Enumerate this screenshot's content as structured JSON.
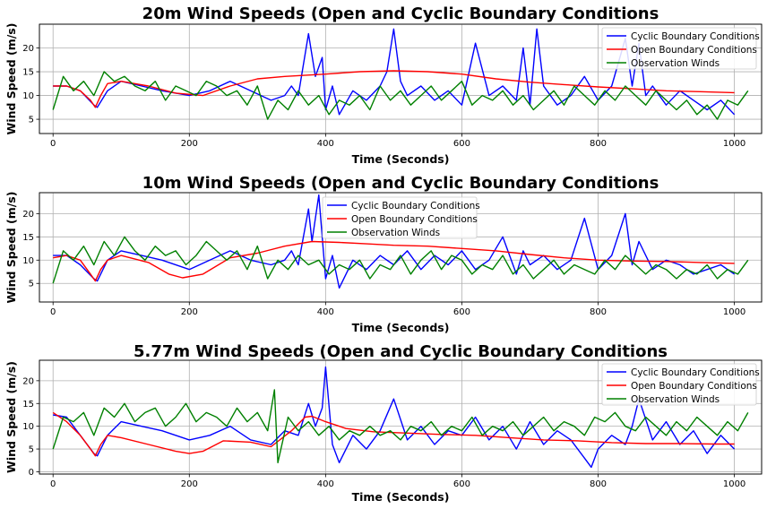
{
  "chart_data": [
    {
      "type": "line",
      "title": "20m Wind Speeds (Open and Cyclic Boundary Conditions",
      "xlabel": "Time (Seconds)",
      "ylabel": "Wind Speed (m/s)",
      "xlim": [
        -20,
        1040
      ],
      "ylim": [
        2,
        25
      ],
      "xticks": [
        0,
        200,
        400,
        600,
        800,
        1000
      ],
      "yticks": [
        5,
        10,
        15,
        20
      ],
      "grid": true,
      "legend_position": "top-right",
      "series": [
        {
          "name": "Cyclic Boundary Conditions",
          "color": "#0000ff",
          "x": [
            0,
            20,
            40,
            60,
            65,
            80,
            100,
            130,
            160,
            200,
            230,
            260,
            290,
            320,
            340,
            350,
            360,
            375,
            385,
            395,
            400,
            410,
            420,
            440,
            460,
            480,
            490,
            500,
            510,
            520,
            540,
            560,
            580,
            600,
            620,
            640,
            660,
            680,
            690,
            700,
            710,
            720,
            740,
            760,
            780,
            800,
            820,
            840,
            850,
            860,
            870,
            880,
            900,
            920,
            940,
            960,
            980,
            1000
          ],
          "y": [
            12,
            12,
            11,
            8,
            7.5,
            11,
            13,
            12,
            11,
            10,
            11,
            13,
            11,
            9,
            10,
            12,
            10,
            23,
            14,
            18,
            7,
            12,
            6,
            11,
            9,
            12,
            15,
            24,
            13,
            10,
            12,
            9,
            11,
            8,
            21,
            10,
            12,
            9,
            20,
            8,
            24,
            12,
            8,
            10,
            14,
            9,
            12,
            22,
            12,
            21,
            10,
            12,
            8,
            11,
            9,
            7,
            9,
            6
          ]
        },
        {
          "name": "Open Boundary Conditions",
          "color": "#ff0000",
          "x": [
            0,
            20,
            40,
            55,
            62,
            70,
            80,
            100,
            140,
            180,
            220,
            260,
            300,
            340,
            400,
            450,
            500,
            550,
            600,
            650,
            700,
            750,
            800,
            850,
            900,
            950,
            1000
          ],
          "y": [
            12,
            12,
            11,
            9,
            7.5,
            10,
            12.5,
            13,
            12,
            10.5,
            10,
            12,
            13.5,
            14,
            14.5,
            15,
            15.2,
            15,
            14.5,
            13.5,
            12.8,
            12.3,
            11.8,
            11.4,
            11,
            10.8,
            10.6
          ]
        },
        {
          "name": "Observation Winds",
          "color": "#008000",
          "x": [
            0,
            15,
            30,
            45,
            60,
            75,
            90,
            105,
            120,
            135,
            150,
            165,
            180,
            195,
            210,
            225,
            240,
            255,
            270,
            285,
            300,
            315,
            330,
            345,
            360,
            375,
            390,
            405,
            420,
            435,
            450,
            465,
            480,
            495,
            510,
            525,
            540,
            555,
            570,
            585,
            600,
            615,
            630,
            645,
            660,
            675,
            690,
            705,
            720,
            735,
            750,
            765,
            780,
            795,
            810,
            825,
            840,
            855,
            870,
            885,
            900,
            915,
            930,
            945,
            960,
            975,
            990,
            1005,
            1020
          ],
          "y": [
            7,
            14,
            11,
            13,
            10,
            15,
            13,
            14,
            12,
            11,
            13,
            9,
            12,
            11,
            10,
            13,
            12,
            10,
            11,
            8,
            12,
            5,
            9,
            7,
            11,
            8,
            10,
            6,
            9,
            8,
            10,
            7,
            12,
            9,
            11,
            8,
            10,
            12,
            9,
            11,
            13,
            8,
            10,
            9,
            11,
            8,
            10,
            7,
            9,
            11,
            8,
            12,
            10,
            8,
            11,
            9,
            12,
            10,
            8,
            11,
            9,
            7,
            9,
            6,
            8,
            5,
            9,
            8,
            11
          ]
        }
      ]
    },
    {
      "type": "line",
      "title": "10m Wind Speeds (Open and Cyclic Boundary Conditions",
      "xlabel": "Time (Seconds)",
      "ylabel": "Wind Speed (m/s)",
      "xlim": [
        -20,
        1040
      ],
      "ylim": [
        1,
        24.5
      ],
      "xticks": [
        0,
        200,
        400,
        600,
        800,
        1000
      ],
      "yticks": [
        5,
        10,
        15,
        20
      ],
      "grid": true,
      "legend_position": "top-center",
      "series": [
        {
          "name": "Cyclic Boundary Conditions",
          "color": "#0000ff",
          "x": [
            0,
            20,
            40,
            60,
            65,
            80,
            100,
            130,
            160,
            200,
            230,
            260,
            290,
            320,
            340,
            350,
            360,
            375,
            380,
            390,
            400,
            410,
            420,
            440,
            460,
            480,
            500,
            520,
            540,
            560,
            580,
            600,
            620,
            640,
            660,
            680,
            690,
            700,
            720,
            740,
            760,
            780,
            800,
            820,
            840,
            850,
            860,
            880,
            900,
            920,
            940,
            960,
            980,
            1000
          ],
          "y": [
            11,
            11,
            9,
            6,
            5.5,
            10,
            12,
            11,
            10,
            8,
            10,
            12,
            10,
            9,
            10,
            12,
            9,
            21,
            14,
            24,
            6,
            11,
            4,
            10,
            8,
            11,
            9,
            12,
            8,
            11,
            9,
            12,
            8,
            10,
            15,
            7,
            12,
            9,
            11,
            8,
            10,
            19,
            8,
            11,
            20,
            9,
            14,
            8,
            10,
            9,
            7,
            8,
            9,
            7
          ]
        },
        {
          "name": "Open Boundary Conditions",
          "color": "#ff0000",
          "x": [
            0,
            20,
            40,
            55,
            62,
            70,
            80,
            100,
            140,
            170,
            190,
            220,
            260,
            300,
            340,
            380,
            420,
            460,
            500,
            550,
            600,
            650,
            700,
            750,
            800,
            850,
            900,
            950,
            1000
          ],
          "y": [
            10.5,
            11,
            10,
            7,
            5.5,
            8,
            10,
            11,
            9.5,
            7,
            6.2,
            7,
            10.5,
            11.5,
            13,
            14,
            13.8,
            13.5,
            13.2,
            13,
            12.5,
            12,
            11.2,
            10.5,
            10,
            9.8,
            9.7,
            9.5,
            9.3
          ]
        },
        {
          "name": "Observation Winds",
          "color": "#008000",
          "x": [
            0,
            15,
            30,
            45,
            60,
            75,
            90,
            105,
            120,
            135,
            150,
            165,
            180,
            195,
            210,
            225,
            240,
            255,
            270,
            285,
            300,
            315,
            330,
            345,
            360,
            375,
            390,
            405,
            420,
            435,
            450,
            465,
            480,
            495,
            510,
            525,
            540,
            555,
            570,
            585,
            600,
            615,
            630,
            645,
            660,
            675,
            690,
            705,
            720,
            735,
            750,
            765,
            780,
            795,
            810,
            825,
            840,
            855,
            870,
            885,
            900,
            915,
            930,
            945,
            960,
            975,
            990,
            1005,
            1020
          ],
          "y": [
            5,
            12,
            10,
            13,
            9,
            14,
            11,
            15,
            12,
            10,
            13,
            11,
            12,
            9,
            11,
            14,
            12,
            10,
            12,
            8,
            13,
            6,
            10,
            8,
            11,
            9,
            10,
            7,
            9,
            8,
            10,
            6,
            9,
            8,
            11,
            7,
            10,
            12,
            8,
            11,
            10,
            7,
            9,
            8,
            11,
            7,
            9,
            6,
            8,
            10,
            7,
            9,
            8,
            7,
            10,
            8,
            11,
            9,
            7,
            9,
            8,
            6,
            8,
            7,
            9,
            6,
            8,
            7,
            10
          ]
        }
      ]
    },
    {
      "type": "line",
      "title": "5.77m Wind Speeds (Open and Cyclic Boundary Conditions",
      "xlabel": "Time (Seconds)",
      "ylabel": "Wind Speed (m/s)",
      "xlim": [
        -20,
        1040
      ],
      "ylim": [
        -0.5,
        24.5
      ],
      "xticks": [
        0,
        200,
        400,
        600,
        800,
        1000
      ],
      "yticks": [
        0,
        5,
        10,
        15,
        20
      ],
      "grid": true,
      "legend_position": "top-right",
      "series": [
        {
          "name": "Cyclic Boundary Conditions",
          "color": "#0000ff",
          "x": [
            0,
            20,
            40,
            60,
            65,
            80,
            100,
            130,
            160,
            200,
            230,
            260,
            290,
            320,
            340,
            360,
            375,
            385,
            395,
            400,
            410,
            420,
            440,
            460,
            480,
            500,
            520,
            540,
            560,
            580,
            600,
            620,
            640,
            660,
            680,
            700,
            720,
            740,
            760,
            780,
            790,
            800,
            820,
            840,
            850,
            860,
            880,
            900,
            920,
            940,
            960,
            980,
            1000
          ],
          "y": [
            12.5,
            12,
            8,
            4,
            3.5,
            8,
            11,
            10,
            9,
            7,
            8,
            10,
            7,
            6,
            9,
            8,
            15,
            10,
            14,
            23,
            6,
            2,
            8,
            5,
            9,
            16,
            7,
            10,
            6,
            9,
            8,
            12,
            7,
            10,
            5,
            11,
            6,
            9,
            7,
            3,
            1,
            5,
            8,
            6,
            10,
            16,
            7,
            11,
            6,
            9,
            4,
            8,
            5
          ]
        },
        {
          "name": "Open Boundary Conditions",
          "color": "#ff0000",
          "x": [
            0,
            20,
            40,
            55,
            62,
            70,
            80,
            100,
            140,
            180,
            200,
            220,
            250,
            290,
            320,
            350,
            370,
            380,
            400,
            430,
            470,
            520,
            570,
            620,
            670,
            720,
            770,
            820,
            870,
            920,
            970,
            1000
          ],
          "y": [
            13,
            11,
            8,
            5,
            3.5,
            6,
            8,
            7.5,
            6,
            4.5,
            4,
            4.5,
            6.8,
            6.5,
            5.5,
            9,
            12,
            12.2,
            11,
            9.5,
            8.8,
            8.5,
            8.2,
            8,
            7.5,
            7,
            6.8,
            6.4,
            6.2,
            6.2,
            6.1,
            6.1
          ]
        },
        {
          "name": "Observation Winds",
          "color": "#008000",
          "x": [
            0,
            15,
            30,
            45,
            60,
            75,
            90,
            105,
            120,
            135,
            150,
            165,
            180,
            195,
            210,
            225,
            240,
            255,
            270,
            285,
            300,
            315,
            325,
            330,
            345,
            360,
            375,
            390,
            405,
            420,
            435,
            450,
            465,
            480,
            495,
            510,
            525,
            540,
            555,
            570,
            585,
            600,
            615,
            630,
            645,
            660,
            675,
            690,
            705,
            720,
            735,
            750,
            765,
            780,
            795,
            810,
            825,
            840,
            855,
            870,
            885,
            900,
            915,
            930,
            945,
            960,
            975,
            990,
            1005,
            1020
          ],
          "y": [
            5,
            12,
            11,
            13,
            8,
            14,
            12,
            15,
            11,
            13,
            14,
            10,
            12,
            15,
            11,
            13,
            12,
            10,
            14,
            11,
            13,
            9,
            18,
            2,
            12,
            9,
            11,
            8,
            10,
            7,
            9,
            8,
            10,
            8,
            9,
            7,
            10,
            9,
            11,
            8,
            10,
            9,
            12,
            8,
            10,
            9,
            11,
            8,
            10,
            12,
            9,
            11,
            10,
            8,
            12,
            11,
            13,
            10,
            9,
            12,
            10,
            8,
            11,
            9,
            12,
            10,
            8,
            11,
            9,
            13
          ]
        }
      ]
    }
  ]
}
